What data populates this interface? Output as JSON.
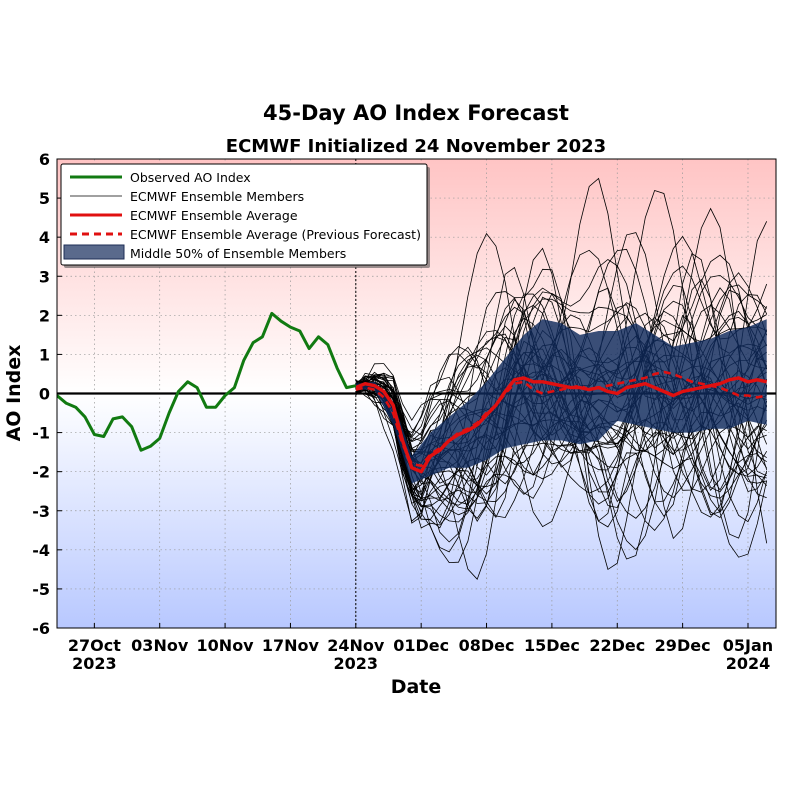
{
  "chart_data": {
    "type": "line",
    "title": "45-Day AO Index Forecast",
    "subtitle": "ECMWF Initialized 24 November 2023",
    "xlabel": "Date",
    "ylabel": "AO Index",
    "ylim": [
      -6,
      6
    ],
    "yticks": [
      "-6",
      "-5",
      "-4",
      "-3",
      "-2",
      "-1",
      "0",
      "1",
      "2",
      "3",
      "4",
      "5",
      "6"
    ],
    "xrange_dates": [
      "2023-10-23",
      "2024-01-08"
    ],
    "xtick_dates": [
      "2023-10-27",
      "2023-11-03",
      "2023-11-10",
      "2023-11-17",
      "2023-11-24",
      "2023-12-01",
      "2023-12-08",
      "2023-12-15",
      "2023-12-22",
      "2023-12-29",
      "2024-01-05"
    ],
    "xticks": [
      {
        "label": "27Oct",
        "year": "2023"
      },
      {
        "label": "03Nov",
        "year": ""
      },
      {
        "label": "10Nov",
        "year": ""
      },
      {
        "label": "17Nov",
        "year": ""
      },
      {
        "label": "24Nov",
        "year": "2023"
      },
      {
        "label": "01Dec",
        "year": ""
      },
      {
        "label": "08Dec",
        "year": ""
      },
      {
        "label": "15Dec",
        "year": ""
      },
      {
        "label": "22Dec",
        "year": ""
      },
      {
        "label": "29Dec",
        "year": ""
      },
      {
        "label": "05Jan",
        "year": "2024"
      }
    ],
    "initialization_date": "2023-11-24",
    "grid": true,
    "legend_position": "top-left",
    "legend": [
      {
        "label": "Observed AO Index",
        "style": "green-line"
      },
      {
        "label": "ECMWF Ensemble Members",
        "style": "thin-black-line"
      },
      {
        "label": "ECMWF Ensemble Average",
        "style": "red-line"
      },
      {
        "label": "ECMWF Ensemble Average (Previous Forecast)",
        "style": "red-dashed-line"
      },
      {
        "label": "Middle 50% of Ensemble Members",
        "style": "navy-band"
      }
    ],
    "colors": {
      "observed": "#117a11",
      "ensemble_member": "#000000",
      "ensemble_average": "#e01010",
      "previous_average": "#e01010",
      "middle_band": "#0f2a5c",
      "positive_shade": "#ffc4c4",
      "negative_shade": "#b8c8ff"
    },
    "series": [
      {
        "name": "Observed AO Index",
        "x": [
          "2023-10-23",
          "2023-10-24",
          "2023-10-25",
          "2023-10-26",
          "2023-10-27",
          "2023-10-28",
          "2023-10-29",
          "2023-10-30",
          "2023-10-31",
          "2023-11-01",
          "2023-11-02",
          "2023-11-03",
          "2023-11-04",
          "2023-11-05",
          "2023-11-06",
          "2023-11-07",
          "2023-11-08",
          "2023-11-09",
          "2023-11-10",
          "2023-11-11",
          "2023-11-12",
          "2023-11-13",
          "2023-11-14",
          "2023-11-15",
          "2023-11-16",
          "2023-11-17",
          "2023-11-18",
          "2023-11-19",
          "2023-11-20",
          "2023-11-21",
          "2023-11-22",
          "2023-11-23",
          "2023-11-24"
        ],
        "y": [
          -0.05,
          -0.25,
          -0.35,
          -0.6,
          -1.05,
          -1.1,
          -0.65,
          -0.6,
          -0.85,
          -1.45,
          -1.35,
          -1.15,
          -0.5,
          0.05,
          0.3,
          0.15,
          -0.35,
          -0.35,
          -0.05,
          0.15,
          0.85,
          1.3,
          1.45,
          2.05,
          1.85,
          1.7,
          1.6,
          1.15,
          1.45,
          1.25,
          0.65,
          0.15,
          0.2
        ]
      },
      {
        "name": "ECMWF Ensemble Average",
        "x": [
          "2023-11-24",
          "2023-11-25",
          "2023-11-26",
          "2023-11-27",
          "2023-11-28",
          "2023-11-29",
          "2023-11-30",
          "2023-12-01",
          "2023-12-02",
          "2023-12-03",
          "2023-12-04",
          "2023-12-05",
          "2023-12-06",
          "2023-12-07",
          "2023-12-08",
          "2023-12-09",
          "2023-12-10",
          "2023-12-11",
          "2023-12-12",
          "2023-12-13",
          "2023-12-14",
          "2023-12-15",
          "2023-12-16",
          "2023-12-17",
          "2023-12-18",
          "2023-12-19",
          "2023-12-20",
          "2023-12-21",
          "2023-12-22",
          "2023-12-23",
          "2023-12-24",
          "2023-12-25",
          "2023-12-26",
          "2023-12-27",
          "2023-12-28",
          "2023-12-29",
          "2023-12-30",
          "2023-12-31",
          "2024-01-01",
          "2024-01-02",
          "2024-01-03",
          "2024-01-04",
          "2024-01-05",
          "2024-01-06",
          "2024-01-07"
        ],
        "y": [
          0.15,
          0.25,
          0.2,
          0.05,
          -0.3,
          -1.2,
          -1.9,
          -2.0,
          -1.6,
          -1.45,
          -1.2,
          -1.05,
          -0.95,
          -0.8,
          -0.55,
          -0.3,
          0.05,
          0.35,
          0.4,
          0.3,
          0.3,
          0.25,
          0.2,
          0.15,
          0.15,
          0.1,
          0.15,
          0.05,
          0.0,
          0.15,
          0.2,
          0.25,
          0.15,
          0.05,
          -0.05,
          0.05,
          0.1,
          0.15,
          0.2,
          0.25,
          0.35,
          0.4,
          0.3,
          0.35,
          0.3
        ]
      },
      {
        "name": "ECMWF Ensemble Average (Previous Forecast)",
        "x": [
          "2023-11-24",
          "2023-11-25",
          "2023-11-26",
          "2023-11-27",
          "2023-11-28",
          "2023-11-29",
          "2023-11-30",
          "2023-12-01",
          "2023-12-02",
          "2023-12-03",
          "2023-12-04",
          "2023-12-05",
          "2023-12-06",
          "2023-12-07",
          "2023-12-08",
          "2023-12-09",
          "2023-12-10",
          "2023-12-11",
          "2023-12-12",
          "2023-12-13",
          "2023-12-14",
          "2023-12-15",
          "2023-12-16",
          "2023-12-17",
          "2023-12-18",
          "2023-12-19",
          "2023-12-20",
          "2023-12-21",
          "2023-12-22",
          "2023-12-23",
          "2023-12-24",
          "2023-12-25",
          "2023-12-26",
          "2023-12-27",
          "2023-12-28",
          "2023-12-29",
          "2023-12-30",
          "2023-12-31",
          "2024-01-01",
          "2024-01-02",
          "2024-01-03",
          "2024-01-04",
          "2024-01-05",
          "2024-01-06",
          "2024-01-07"
        ],
        "y": [
          0.1,
          0.15,
          0.1,
          -0.1,
          -0.5,
          -1.3,
          -1.8,
          -1.85,
          -1.55,
          -1.4,
          -1.2,
          -1.0,
          -0.9,
          -0.75,
          -0.5,
          -0.3,
          0.0,
          0.25,
          0.3,
          0.1,
          0.0,
          0.05,
          0.1,
          0.15,
          0.2,
          0.1,
          0.15,
          0.2,
          0.25,
          0.3,
          0.35,
          0.4,
          0.5,
          0.55,
          0.5,
          0.4,
          0.3,
          0.25,
          0.2,
          0.15,
          0.05,
          -0.05,
          -0.05,
          -0.1,
          -0.05
        ]
      },
      {
        "name": "Middle 50% of Ensemble Members",
        "x": [
          "2023-11-24",
          "2023-11-26",
          "2023-11-28",
          "2023-11-30",
          "2023-12-02",
          "2023-12-04",
          "2023-12-06",
          "2023-12-08",
          "2023-12-10",
          "2023-12-12",
          "2023-12-14",
          "2023-12-16",
          "2023-12-18",
          "2023-12-20",
          "2023-12-22",
          "2023-12-24",
          "2023-12-26",
          "2023-12-28",
          "2023-12-30",
          "2024-01-01",
          "2024-01-03",
          "2024-01-05",
          "2024-01-07"
        ],
        "lower": [
          0.1,
          0.1,
          -0.8,
          -2.3,
          -2.1,
          -1.9,
          -1.9,
          -1.7,
          -1.4,
          -1.3,
          -1.2,
          -1.2,
          -1.3,
          -1.2,
          -0.7,
          -0.8,
          -0.9,
          -1.0,
          -1.0,
          -0.9,
          -0.9,
          -0.7,
          -0.8
        ],
        "upper": [
          0.25,
          0.3,
          -0.2,
          -1.6,
          -1.0,
          -0.6,
          -0.2,
          0.3,
          0.9,
          1.5,
          1.9,
          1.8,
          1.5,
          1.6,
          1.6,
          1.8,
          1.5,
          1.2,
          1.3,
          1.4,
          1.6,
          1.7,
          1.9
        ]
      }
    ]
  }
}
